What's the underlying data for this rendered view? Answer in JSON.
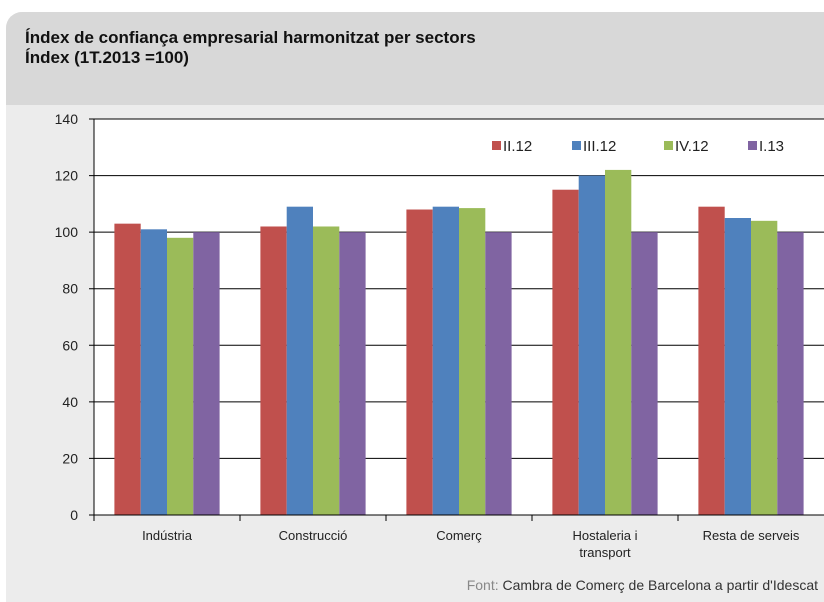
{
  "header": {
    "title": "Índex de confiança empresarial harmonitzat per sectors",
    "subtitle": "Índex (1T.2013  =100)"
  },
  "source": {
    "label": "Font:",
    "text": " Cambra de Comerç de Barcelona a partir d'Idescat"
  },
  "colors": {
    "series": [
      "#c0504d",
      "#4f81bd",
      "#9bbb59",
      "#8064a2"
    ],
    "grid": "#000000",
    "plot_bg": "#ffffff",
    "card_bg": "#ececec",
    "header_bg": "#d8d8d8"
  },
  "chart_data": {
    "type": "bar",
    "categories": [
      "Indústria",
      "Construcció",
      "Comerç",
      "Hostaleria i transport",
      "Resta de serveis"
    ],
    "category_lines": [
      [
        "Indústria"
      ],
      [
        "Construcció"
      ],
      [
        "Comerç"
      ],
      [
        "Hostaleria i",
        "transport"
      ],
      [
        "Resta de serveis"
      ]
    ],
    "series": [
      {
        "name": "II.12",
        "values": [
          103,
          102,
          108,
          115,
          109
        ]
      },
      {
        "name": "III.12",
        "values": [
          101,
          109,
          109,
          120,
          105
        ]
      },
      {
        "name": "IV.12",
        "values": [
          98,
          102,
          108.5,
          122,
          104
        ]
      },
      {
        "name": "I.13",
        "values": [
          100,
          100,
          100,
          100,
          100
        ]
      }
    ],
    "ylim": [
      0,
      140
    ],
    "yticks": [
      0,
      20,
      40,
      60,
      80,
      100,
      120,
      140
    ],
    "grid": true,
    "legend_position": "top-right"
  }
}
